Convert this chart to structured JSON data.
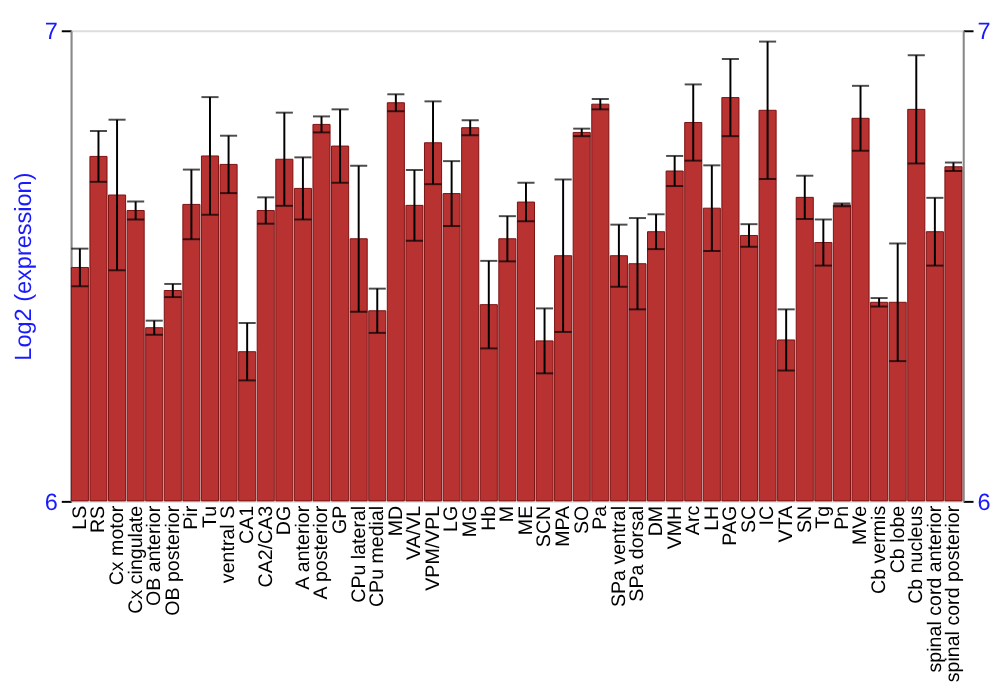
{
  "chart_data": {
    "type": "bar",
    "ylabel": "Log2 (expression)",
    "categories": [
      "LS",
      "RS",
      "Cx motor",
      "Cx cingulate",
      "OB anterior",
      "OB posterior",
      "Pir",
      "Tu",
      "ventral S",
      "CA1",
      "CA2/CA3",
      "DG",
      "A anterior",
      "A posterior",
      "GP",
      "CPu lateral",
      "CPu medial",
      "MD",
      "VA/VL",
      "VPM/VPL",
      "LG",
      "MG",
      "Hb",
      "M",
      "ME",
      "SCN",
      "MPA",
      "SO",
      "Pa",
      "SPa ventral",
      "SPa dorsal",
      "DM",
      "VMH",
      "Arc",
      "LH",
      "PAG",
      "SC",
      "IC",
      "VTA",
      "SN",
      "Tg",
      "Pn",
      "MVe",
      "Cb vermis",
      "Cb lobe",
      "Cb nucleus",
      "spinal cord anterior",
      "spinal cord posterior"
    ],
    "values": [
      6.496,
      6.732,
      6.65,
      6.617,
      6.368,
      6.447,
      6.63,
      6.733,
      6.715,
      6.317,
      6.617,
      6.726,
      6.664,
      6.8,
      6.754,
      6.557,
      6.404,
      6.846,
      6.628,
      6.761,
      6.653,
      6.793,
      6.417,
      6.557,
      6.635,
      6.34,
      6.521,
      6.783,
      6.843,
      6.521,
      6.504,
      6.572,
      6.701,
      6.804,
      6.622,
      6.857,
      6.564,
      6.83,
      6.342,
      6.645,
      6.549,
      6.629,
      6.813,
      6.422,
      6.422,
      6.832,
      6.572,
      6.71
    ],
    "errors": [
      0.04,
      0.054,
      0.16,
      0.019,
      0.015,
      0.014,
      0.074,
      0.125,
      0.061,
      0.061,
      0.028,
      0.099,
      0.066,
      0.017,
      0.078,
      0.155,
      0.047,
      0.018,
      0.075,
      0.088,
      0.069,
      0.016,
      0.093,
      0.048,
      0.041,
      0.069,
      0.162,
      0.008,
      0.011,
      0.066,
      0.097,
      0.037,
      0.032,
      0.081,
      0.091,
      0.082,
      0.024,
      0.146,
      0.065,
      0.046,
      0.049,
      0.003,
      0.069,
      0.009,
      0.125,
      0.115,
      0.072,
      0.009
    ],
    "color": "#b83232",
    "ylim": [
      6,
      7
    ],
    "yticks": [
      6,
      7
    ],
    "y2lim": [
      6,
      7
    ],
    "y2ticks": [
      6,
      7
    ],
    "grid": false
  }
}
